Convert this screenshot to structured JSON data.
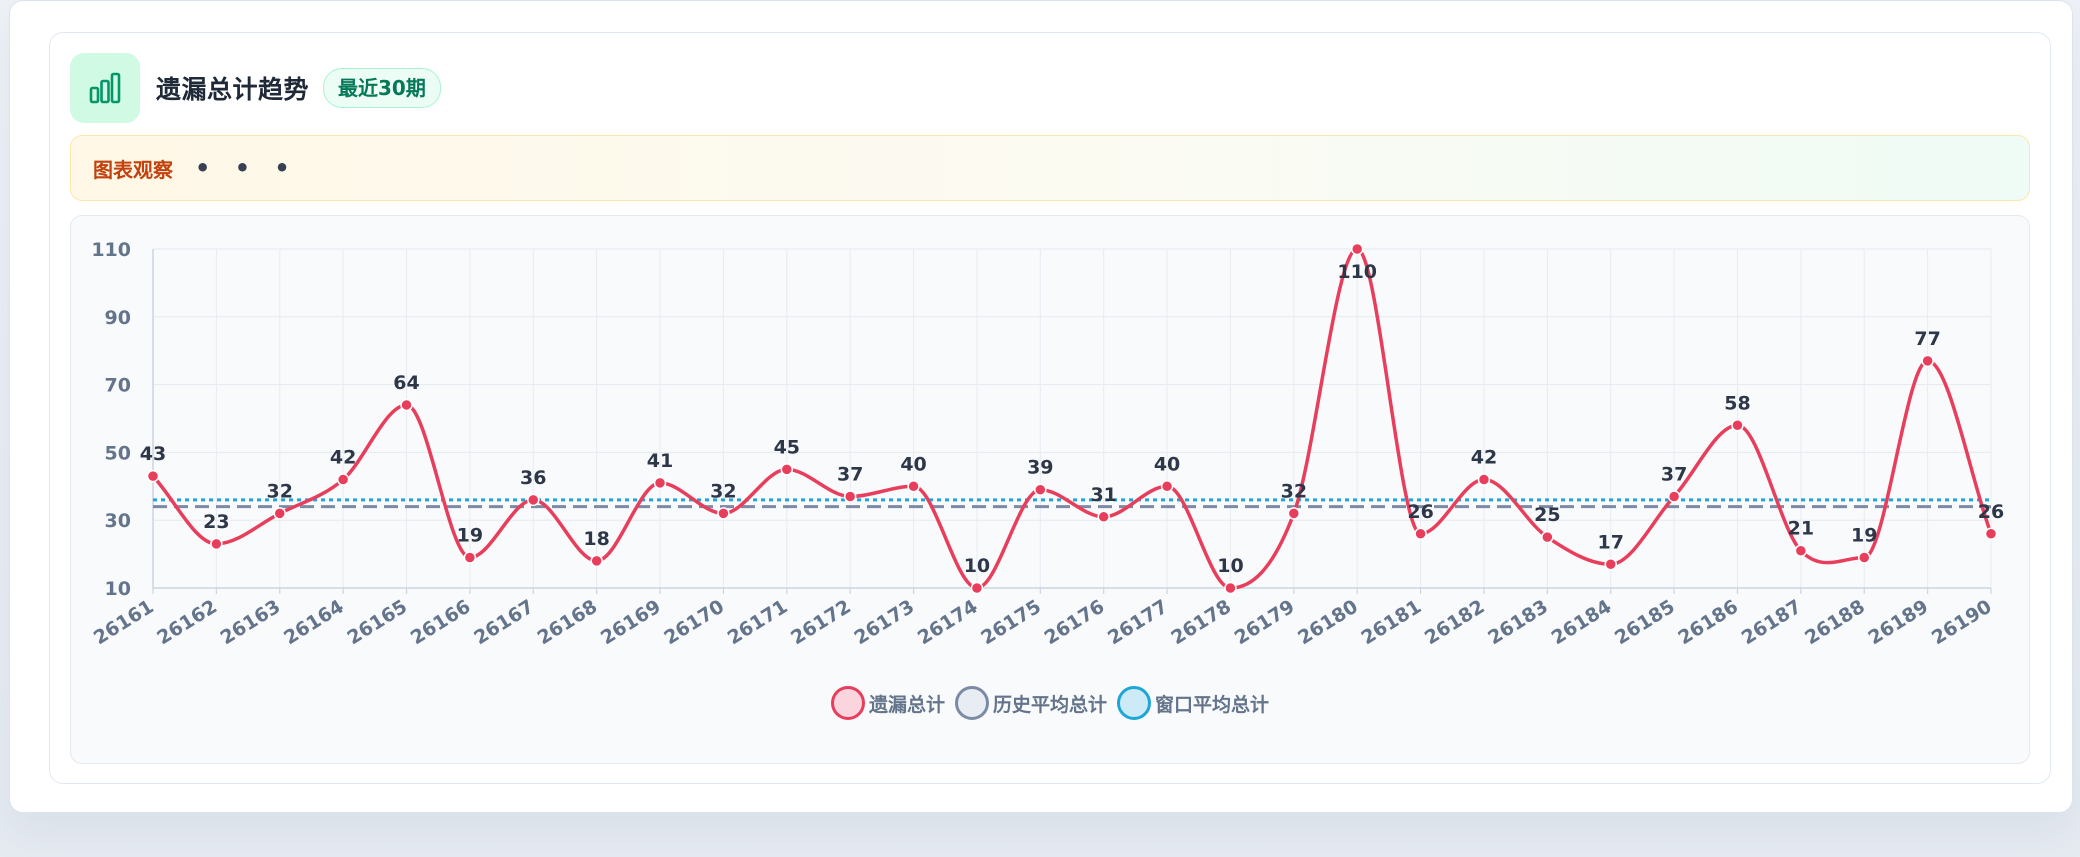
{
  "header": {
    "title": "遗漏总计趋势",
    "badge": "最近30期",
    "icon": "bar-chart-icon"
  },
  "insight": {
    "label": "图表观察",
    "more": "• • •"
  },
  "colors": {
    "series_main": "#e83e5c",
    "series_hist_avg": "#7c8aa5",
    "series_window_avg": "#1ea7d6",
    "accent_green": "#059669"
  },
  "chart_data": {
    "type": "line",
    "x": [
      "26161",
      "26162",
      "26163",
      "26164",
      "26165",
      "26166",
      "26167",
      "26168",
      "26169",
      "26170",
      "26171",
      "26172",
      "26173",
      "26174",
      "26175",
      "26176",
      "26177",
      "26178",
      "26179",
      "26180",
      "26181",
      "26182",
      "26183",
      "26184",
      "26185",
      "26186",
      "26187",
      "26188",
      "26189",
      "26190"
    ],
    "series": [
      {
        "name": "遗漏总计",
        "values": [
          43,
          23,
          32,
          42,
          64,
          19,
          36,
          18,
          41,
          32,
          45,
          37,
          40,
          10,
          39,
          31,
          40,
          10,
          32,
          110,
          26,
          42,
          25,
          17,
          37,
          58,
          21,
          19,
          77,
          26
        ],
        "color": "#e83e5c",
        "smooth": true,
        "data_labels": true
      },
      {
        "name": "历史平均总计",
        "value": 34,
        "style": "dashed",
        "color": "#7c8aa5"
      },
      {
        "name": "窗口平均总计",
        "value": 36,
        "style": "dotted",
        "color": "#1ea7d6"
      }
    ],
    "yticks": [
      10,
      30,
      50,
      70,
      90,
      110
    ],
    "ylim": [
      10,
      110
    ],
    "grid": true,
    "legend": "bottom-center"
  }
}
